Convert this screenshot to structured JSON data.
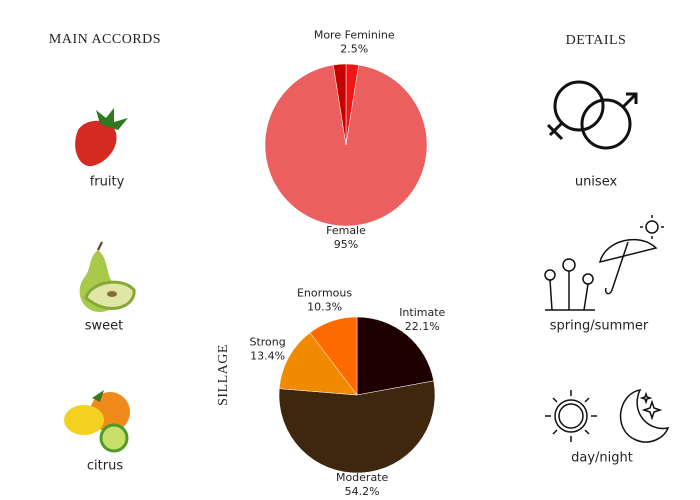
{
  "main_accords": {
    "title": "MAIN ACCORDS",
    "items": [
      "fruity",
      "sweet",
      "citrus"
    ]
  },
  "details": {
    "title": "DETAILS",
    "items": [
      "unisex",
      "spring/summer",
      "day/night"
    ]
  },
  "chart_data": [
    {
      "type": "pie",
      "categories": [
        "More Feminine",
        "Female",
        null
      ],
      "values": [
        2.5,
        95,
        2.5
      ],
      "value_labels": [
        "2.5%",
        "95%",
        null
      ],
      "colors": [
        "#f01414",
        "#eb5f5f",
        "#c40000"
      ]
    },
    {
      "type": "pie",
      "title": "SILLAGE",
      "categories": [
        "Intimate",
        "Moderate",
        "Strong",
        "Enormous"
      ],
      "values": [
        22.1,
        54.2,
        13.4,
        10.3
      ],
      "value_labels": [
        "22.1%",
        "54.2%",
        "13.4%",
        "10.3%"
      ],
      "colors": [
        "#1e0000",
        "#3f270f",
        "#f28a00",
        "#ff6a00"
      ]
    }
  ]
}
